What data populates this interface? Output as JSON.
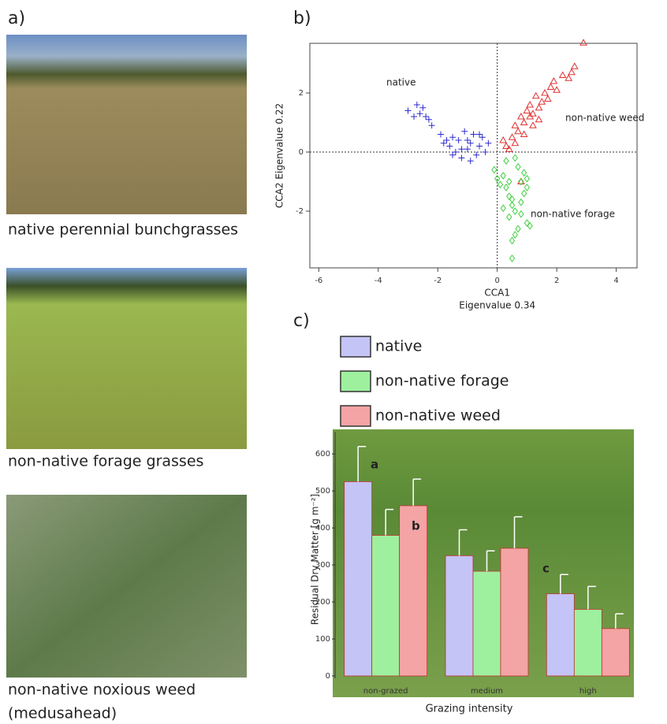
{
  "panels": [
    "a)",
    "b)",
    "c)"
  ],
  "photo_captions": [
    [
      "native perennial bunchgrasses"
    ],
    [
      "non-native forage grasses"
    ],
    [
      "non-native noxious weed",
      "(medusahead)"
    ]
  ],
  "chart_data": [
    {
      "type": "scatter",
      "xlabel": [
        "CCA1",
        "Eigenvalue 0.34"
      ],
      "ylabel": "CCA2 Eigenvalue 0.22",
      "xlim": [
        -6.3,
        4.7
      ],
      "ylim": [
        -3.92,
        3.68
      ],
      "xticks": [
        -6,
        -4,
        -2,
        0,
        2,
        4
      ],
      "yticks": [
        -2,
        0,
        2
      ],
      "series": [
        {
          "name": "native",
          "color": "#2b2bd0",
          "marker": "plus",
          "x": [
            -3.0,
            -2.7,
            -2.6,
            -2.5,
            -2.4,
            -2.3,
            -2.8,
            -2.2,
            -1.9,
            -1.8,
            -1.6,
            -1.5,
            -1.4,
            -1.3,
            -1.2,
            -1.1,
            -1.0,
            -0.9,
            -0.8,
            -0.7,
            -0.6,
            -0.5,
            -0.4,
            -0.3,
            -1.7,
            -1.2,
            -0.9,
            -0.6,
            -1.5,
            -1.0
          ],
          "values": [
            1.4,
            1.6,
            1.3,
            1.5,
            1.2,
            1.1,
            1.2,
            0.9,
            0.6,
            0.3,
            0.2,
            0.5,
            0.0,
            0.4,
            -0.2,
            0.7,
            0.1,
            0.3,
            0.6,
            -0.1,
            0.2,
            0.5,
            0.0,
            0.3,
            0.4,
            0.1,
            -0.3,
            0.6,
            -0.1,
            0.4
          ]
        },
        {
          "name": "non-native weed",
          "color": "#e03030",
          "marker": "triangle",
          "x": [
            0.2,
            0.3,
            0.4,
            0.5,
            0.6,
            0.7,
            0.8,
            0.9,
            1.0,
            1.1,
            1.2,
            1.3,
            1.4,
            1.5,
            1.6,
            1.7,
            1.8,
            1.9,
            2.0,
            2.2,
            2.4,
            2.5,
            2.6,
            2.9,
            0.9,
            1.2,
            1.4,
            0.6,
            1.1,
            0.8
          ],
          "values": [
            0.4,
            0.2,
            0.1,
            0.5,
            0.9,
            0.7,
            1.2,
            1.0,
            1.4,
            1.6,
            1.3,
            1.9,
            1.1,
            1.7,
            2.0,
            1.8,
            2.2,
            2.4,
            2.1,
            2.6,
            2.5,
            2.7,
            2.9,
            3.7,
            0.6,
            0.9,
            1.5,
            0.3,
            1.2,
            -1.0
          ]
        },
        {
          "name": "non-native forage",
          "color": "#3ad03a",
          "marker": "diamond",
          "x": [
            -0.1,
            0.0,
            0.1,
            0.2,
            0.3,
            0.4,
            0.5,
            0.6,
            0.7,
            0.8,
            0.9,
            1.0,
            1.1,
            0.2,
            0.4,
            0.6,
            0.8,
            1.0,
            0.3,
            0.5,
            0.7,
            0.9,
            0.5,
            0.6,
            0.4,
            0.8,
            1.0,
            0.5
          ],
          "values": [
            -0.6,
            -0.9,
            -1.1,
            -0.8,
            -1.2,
            -1.5,
            -1.8,
            -2.0,
            -0.5,
            -1.0,
            -1.4,
            -2.4,
            -2.5,
            -1.9,
            -2.2,
            -2.8,
            -1.7,
            -1.2,
            -0.3,
            -3.0,
            -2.6,
            -0.7,
            -3.6,
            -0.2,
            -1.0,
            -2.1,
            -0.9,
            -1.6
          ]
        }
      ]
    },
    {
      "type": "bar",
      "xlabel": "Grazing intensity",
      "ylabel": "Residual Dry Matter [g m⁻²]",
      "categories": [
        "non-grazed",
        "medium",
        "high"
      ],
      "ylim": [
        0,
        660
      ],
      "yticks": [
        0,
        100,
        200,
        300,
        400,
        500,
        600
      ],
      "annotations": [
        "a",
        "b",
        "c"
      ],
      "series": [
        {
          "name": "native",
          "color": "#c4c4f6",
          "values": [
            525,
            325,
            222
          ],
          "errors": [
            95,
            70,
            52
          ]
        },
        {
          "name": "non-native forage",
          "color": "#9ef09e",
          "values": [
            380,
            283,
            180
          ],
          "errors": [
            70,
            55,
            62
          ]
        },
        {
          "name": "non-native weed",
          "color": "#f4a4a4",
          "values": [
            460,
            345,
            128
          ],
          "errors": [
            72,
            85,
            40
          ]
        }
      ]
    }
  ]
}
